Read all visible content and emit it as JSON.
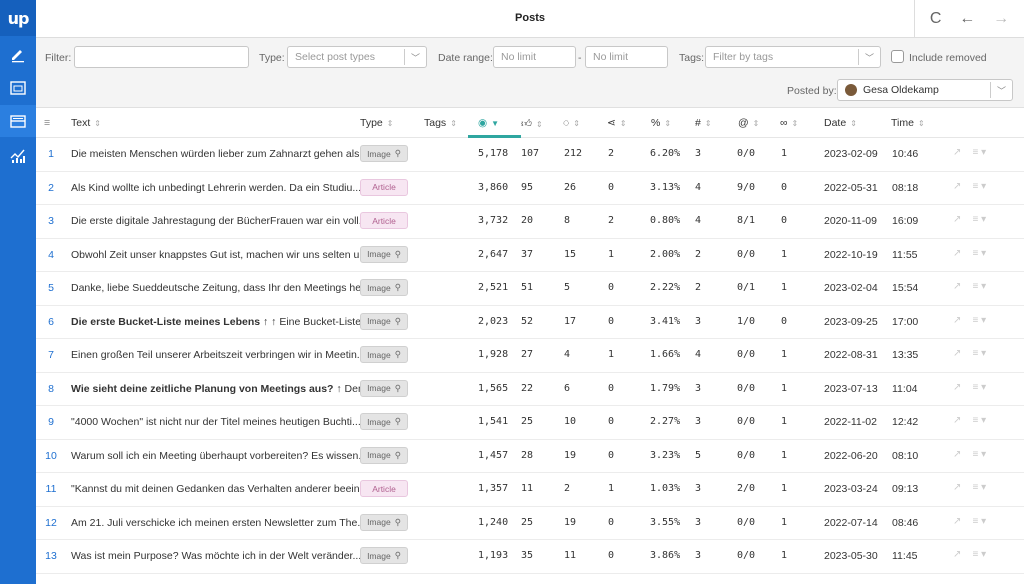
{
  "app": {
    "logo": "up",
    "title": "Posts"
  },
  "toolbar": {
    "refresh": "C",
    "back": "←",
    "forward": "→"
  },
  "filters": {
    "filter_label": "Filter:",
    "type_label": "Type:",
    "type_placeholder": "Select post types",
    "date_label": "Date range:",
    "date_from": "No limit",
    "date_sep": "-",
    "date_to": "No limit",
    "tags_label": "Tags:",
    "tags_placeholder": "Filter by tags",
    "include_removed": "Include removed",
    "posted_by_label": "Posted by:",
    "posted_by_value": "Gesa Oldekamp"
  },
  "columns": {
    "text": "Text",
    "type": "Type",
    "tags": "Tags",
    "date": "Date",
    "time": "Time",
    "views_icon": "eye-icon",
    "likes_icon": "thumbs-up-icon",
    "comments_icon": "comment-icon",
    "shares_icon": "share-icon",
    "pct": "%",
    "hash": "#",
    "at": "@",
    "links_icon": "link-icon"
  },
  "rows": [
    {
      "n": "1",
      "text": "Die meisten Menschen würden lieber zum Zahnarzt gehen als...",
      "type": "Image",
      "views": "5,178",
      "likes": "107",
      "comments": "212",
      "shares": "2",
      "pct": "6.20%",
      "hash": "3",
      "at": "0/0",
      "links": "1",
      "date": "2023-02-09",
      "time": "10:46"
    },
    {
      "n": "2",
      "text": "Als Kind wollte ich unbedingt Lehrerin werden. Da ein Studiu...",
      "type": "Article",
      "views": "3,860",
      "likes": "95",
      "comments": "26",
      "shares": "0",
      "pct": "3.13%",
      "hash": "4",
      "at": "9/0",
      "links": "0",
      "date": "2022-05-31",
      "time": "08:18"
    },
    {
      "n": "3",
      "text": "Die erste digitale Jahrestagung der BücherFrauen war ein voll...",
      "type": "Article",
      "views": "3,732",
      "likes": "20",
      "comments": "8",
      "shares": "2",
      "pct": "0.80%",
      "hash": "4",
      "at": "8/1",
      "links": "0",
      "date": "2020-11-09",
      "time": "16:09"
    },
    {
      "n": "4",
      "text": "Obwohl Zeit unser knappstes Gut ist, machen wir uns selten u...",
      "type": "Image",
      "views": "2,647",
      "likes": "37",
      "comments": "15",
      "shares": "1",
      "pct": "2.00%",
      "hash": "2",
      "at": "0/0",
      "links": "1",
      "date": "2022-10-19",
      "time": "11:55"
    },
    {
      "n": "5",
      "text": "Danke, liebe Sueddeutsche Zeitung, dass Ihr den Meetings he...",
      "type": "Image",
      "views": "2,521",
      "likes": "51",
      "comments": "5",
      "shares": "0",
      "pct": "2.22%",
      "hash": "2",
      "at": "0/1",
      "links": "1",
      "date": "2023-02-04",
      "time": "15:54"
    },
    {
      "n": "6",
      "text": "Die erste Bucket-Liste meines Lebens ↑ ↑ Eine Bucket-Liste ...",
      "type": "Image",
      "views": "2,023",
      "likes": "52",
      "comments": "17",
      "shares": "0",
      "pct": "3.41%",
      "hash": "3",
      "at": "1/0",
      "links": "0",
      "date": "2023-09-25",
      "time": "17:00",
      "bold": "Die erste Bucket-Liste meines Lebens",
      "rest": " ↑ ↑ Eine Bucket-Liste ..."
    },
    {
      "n": "7",
      "text": "Einen großen Teil unserer Arbeitszeit verbringen wir in Meetin...",
      "type": "Image",
      "views": "1,928",
      "likes": "27",
      "comments": "4",
      "shares": "1",
      "pct": "1.66%",
      "hash": "4",
      "at": "0/0",
      "links": "1",
      "date": "2022-08-31",
      "time": "13:35"
    },
    {
      "n": "8",
      "text": "Wie sieht deine zeitliche Planung von Meetings aus? ↑ Den...",
      "type": "Image",
      "views": "1,565",
      "likes": "22",
      "comments": "6",
      "shares": "0",
      "pct": "1.79%",
      "hash": "3",
      "at": "0/0",
      "links": "1",
      "date": "2023-07-13",
      "time": "11:04",
      "bold": "Wie sieht deine zeitliche Planung von Meetings aus?",
      "rest": " ↑ Den..."
    },
    {
      "n": "9",
      "text": "\"4000 Wochen\" ist nicht nur der Titel meines heutigen Buchti...",
      "type": "Image",
      "views": "1,541",
      "likes": "25",
      "comments": "10",
      "shares": "0",
      "pct": "2.27%",
      "hash": "3",
      "at": "0/0",
      "links": "1",
      "date": "2022-11-02",
      "time": "12:42"
    },
    {
      "n": "10",
      "text": "Warum soll ich ein Meeting überhaupt vorbereiten? Es wissen...",
      "type": "Image",
      "views": "1,457",
      "likes": "28",
      "comments": "19",
      "shares": "0",
      "pct": "3.23%",
      "hash": "5",
      "at": "0/0",
      "links": "1",
      "date": "2022-06-20",
      "time": "08:10"
    },
    {
      "n": "11",
      "text": "\"Kannst du mit deinen Gedanken das Verhalten anderer beein...",
      "type": "Article",
      "views": "1,357",
      "likes": "11",
      "comments": "2",
      "shares": "1",
      "pct": "1.03%",
      "hash": "3",
      "at": "2/0",
      "links": "1",
      "date": "2023-03-24",
      "time": "09:13"
    },
    {
      "n": "12",
      "text": "Am 21. Juli verschicke ich meinen ersten Newsletter zum The...",
      "type": "Image",
      "views": "1,240",
      "likes": "25",
      "comments": "19",
      "shares": "0",
      "pct": "3.55%",
      "hash": "3",
      "at": "0/0",
      "links": "1",
      "date": "2022-07-14",
      "time": "08:46"
    },
    {
      "n": "13",
      "text": "Was ist mein Purpose? Was möchte ich in der Welt veränder...",
      "type": "Image",
      "views": "1,193",
      "likes": "35",
      "comments": "11",
      "shares": "0",
      "pct": "3.86%",
      "hash": "3",
      "at": "0/0",
      "links": "1",
      "date": "2023-05-30",
      "time": "11:45"
    }
  ],
  "colors": {
    "sidebar": "#1e6fd0",
    "accent": "#2fa6a0",
    "row_number": "#1e6fd0"
  }
}
